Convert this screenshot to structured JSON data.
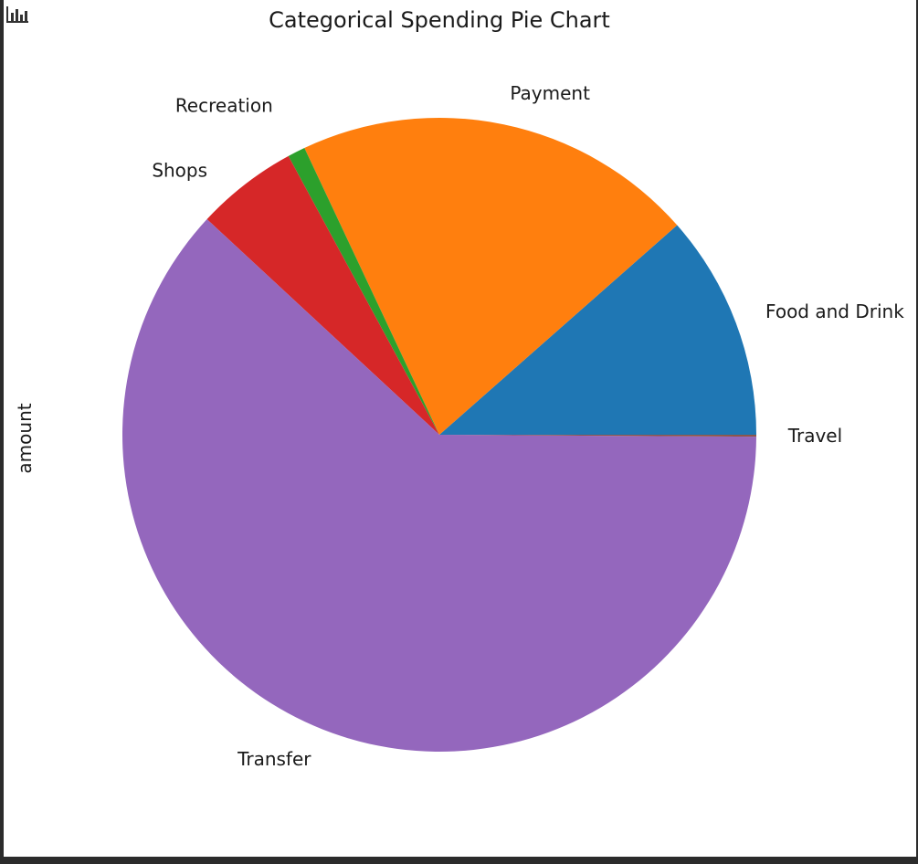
{
  "toolbar": {
    "icon": "bar-chart-icon"
  },
  "chart_data": {
    "type": "pie",
    "title": "Categorical Spending Pie Chart",
    "ylabel": "amount",
    "xlabel": "",
    "legend": "none",
    "start_angle_deg": 0,
    "direction": "counterclockwise",
    "slices": [
      {
        "label": "Food and Drink",
        "value": 11.5,
        "color": "#1f77b4"
      },
      {
        "label": "Payment",
        "value": 20.5,
        "color": "#ff7f0e"
      },
      {
        "label": "Recreation",
        "value": 0.9,
        "color": "#2ca02c"
      },
      {
        "label": "Shops",
        "value": 5.2,
        "color": "#d62728"
      },
      {
        "label": "Transfer",
        "value": 61.8,
        "color": "#9467bd"
      },
      {
        "label": "Travel",
        "value": 0.1,
        "color": "#8c564b"
      }
    ]
  }
}
